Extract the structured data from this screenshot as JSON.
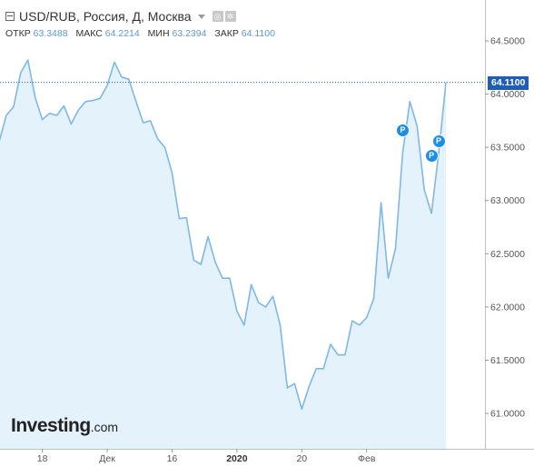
{
  "header": {
    "title": "USD/RUB, Россия, Д, Москва",
    "icons": [
      "collapse-icon",
      "chevron-down-icon",
      "settings-icon",
      "gear-icon"
    ]
  },
  "stats": {
    "open_label": "ОТКР",
    "open_value": "63.3488",
    "high_label": "МАКС",
    "high_value": "64.2214",
    "low_label": "МИН",
    "low_value": "63.2394",
    "close_label": "ЗАКР",
    "close_value": "64.1100"
  },
  "logo": {
    "main": "Investing",
    "suffix": ".com"
  },
  "last_price_label": "64.1100",
  "event_marker_label": "P",
  "colors": {
    "line": "#7fb8e6",
    "area": "#e4f2fb",
    "accent": "#1f5db6",
    "marker": "#1a8ee8"
  },
  "chart_data": {
    "type": "area",
    "title": "",
    "xlabel": "",
    "ylabel": "",
    "ylim": [
      60.6,
      64.6
    ],
    "y_ticks": [
      "64.5000",
      "64.0000",
      "63.5000",
      "63.0000",
      "62.5000",
      "62.0000",
      "61.5000",
      "61.0000"
    ],
    "x_ticks": [
      {
        "label": "18",
        "index": 6
      },
      {
        "label": "Дек",
        "index": 15
      },
      {
        "label": "16",
        "index": 24
      },
      {
        "label": "2020",
        "index": 33
      },
      {
        "label": "20",
        "index": 42
      },
      {
        "label": "Фев",
        "index": 51
      }
    ],
    "last_value": 64.11,
    "values": [
      63.55,
      63.8,
      63.88,
      64.2,
      64.32,
      63.97,
      63.76,
      63.82,
      63.8,
      63.89,
      63.72,
      63.85,
      63.93,
      63.94,
      63.96,
      64.08,
      64.3,
      64.16,
      64.14,
      63.93,
      63.73,
      63.75,
      63.58,
      63.5,
      63.26,
      62.83,
      62.84,
      62.44,
      62.4,
      62.66,
      62.42,
      62.27,
      62.27,
      61.96,
      61.83,
      62.21,
      62.04,
      62.0,
      62.1,
      61.83,
      61.24,
      61.28,
      61.04,
      61.25,
      61.42,
      61.42,
      61.65,
      61.55,
      61.55,
      61.87,
      61.83,
      61.9,
      62.08,
      62.98,
      62.27,
      62.55,
      63.45,
      63.93,
      63.7,
      63.1,
      62.88,
      63.45,
      64.11
    ],
    "events": [
      {
        "label": "P",
        "index": 56,
        "value": 63.66
      },
      {
        "label": "P",
        "index": 60,
        "value": 63.42
      },
      {
        "label": "P",
        "index": 61,
        "value": 63.56
      }
    ],
    "grid": false,
    "legend": "none"
  }
}
